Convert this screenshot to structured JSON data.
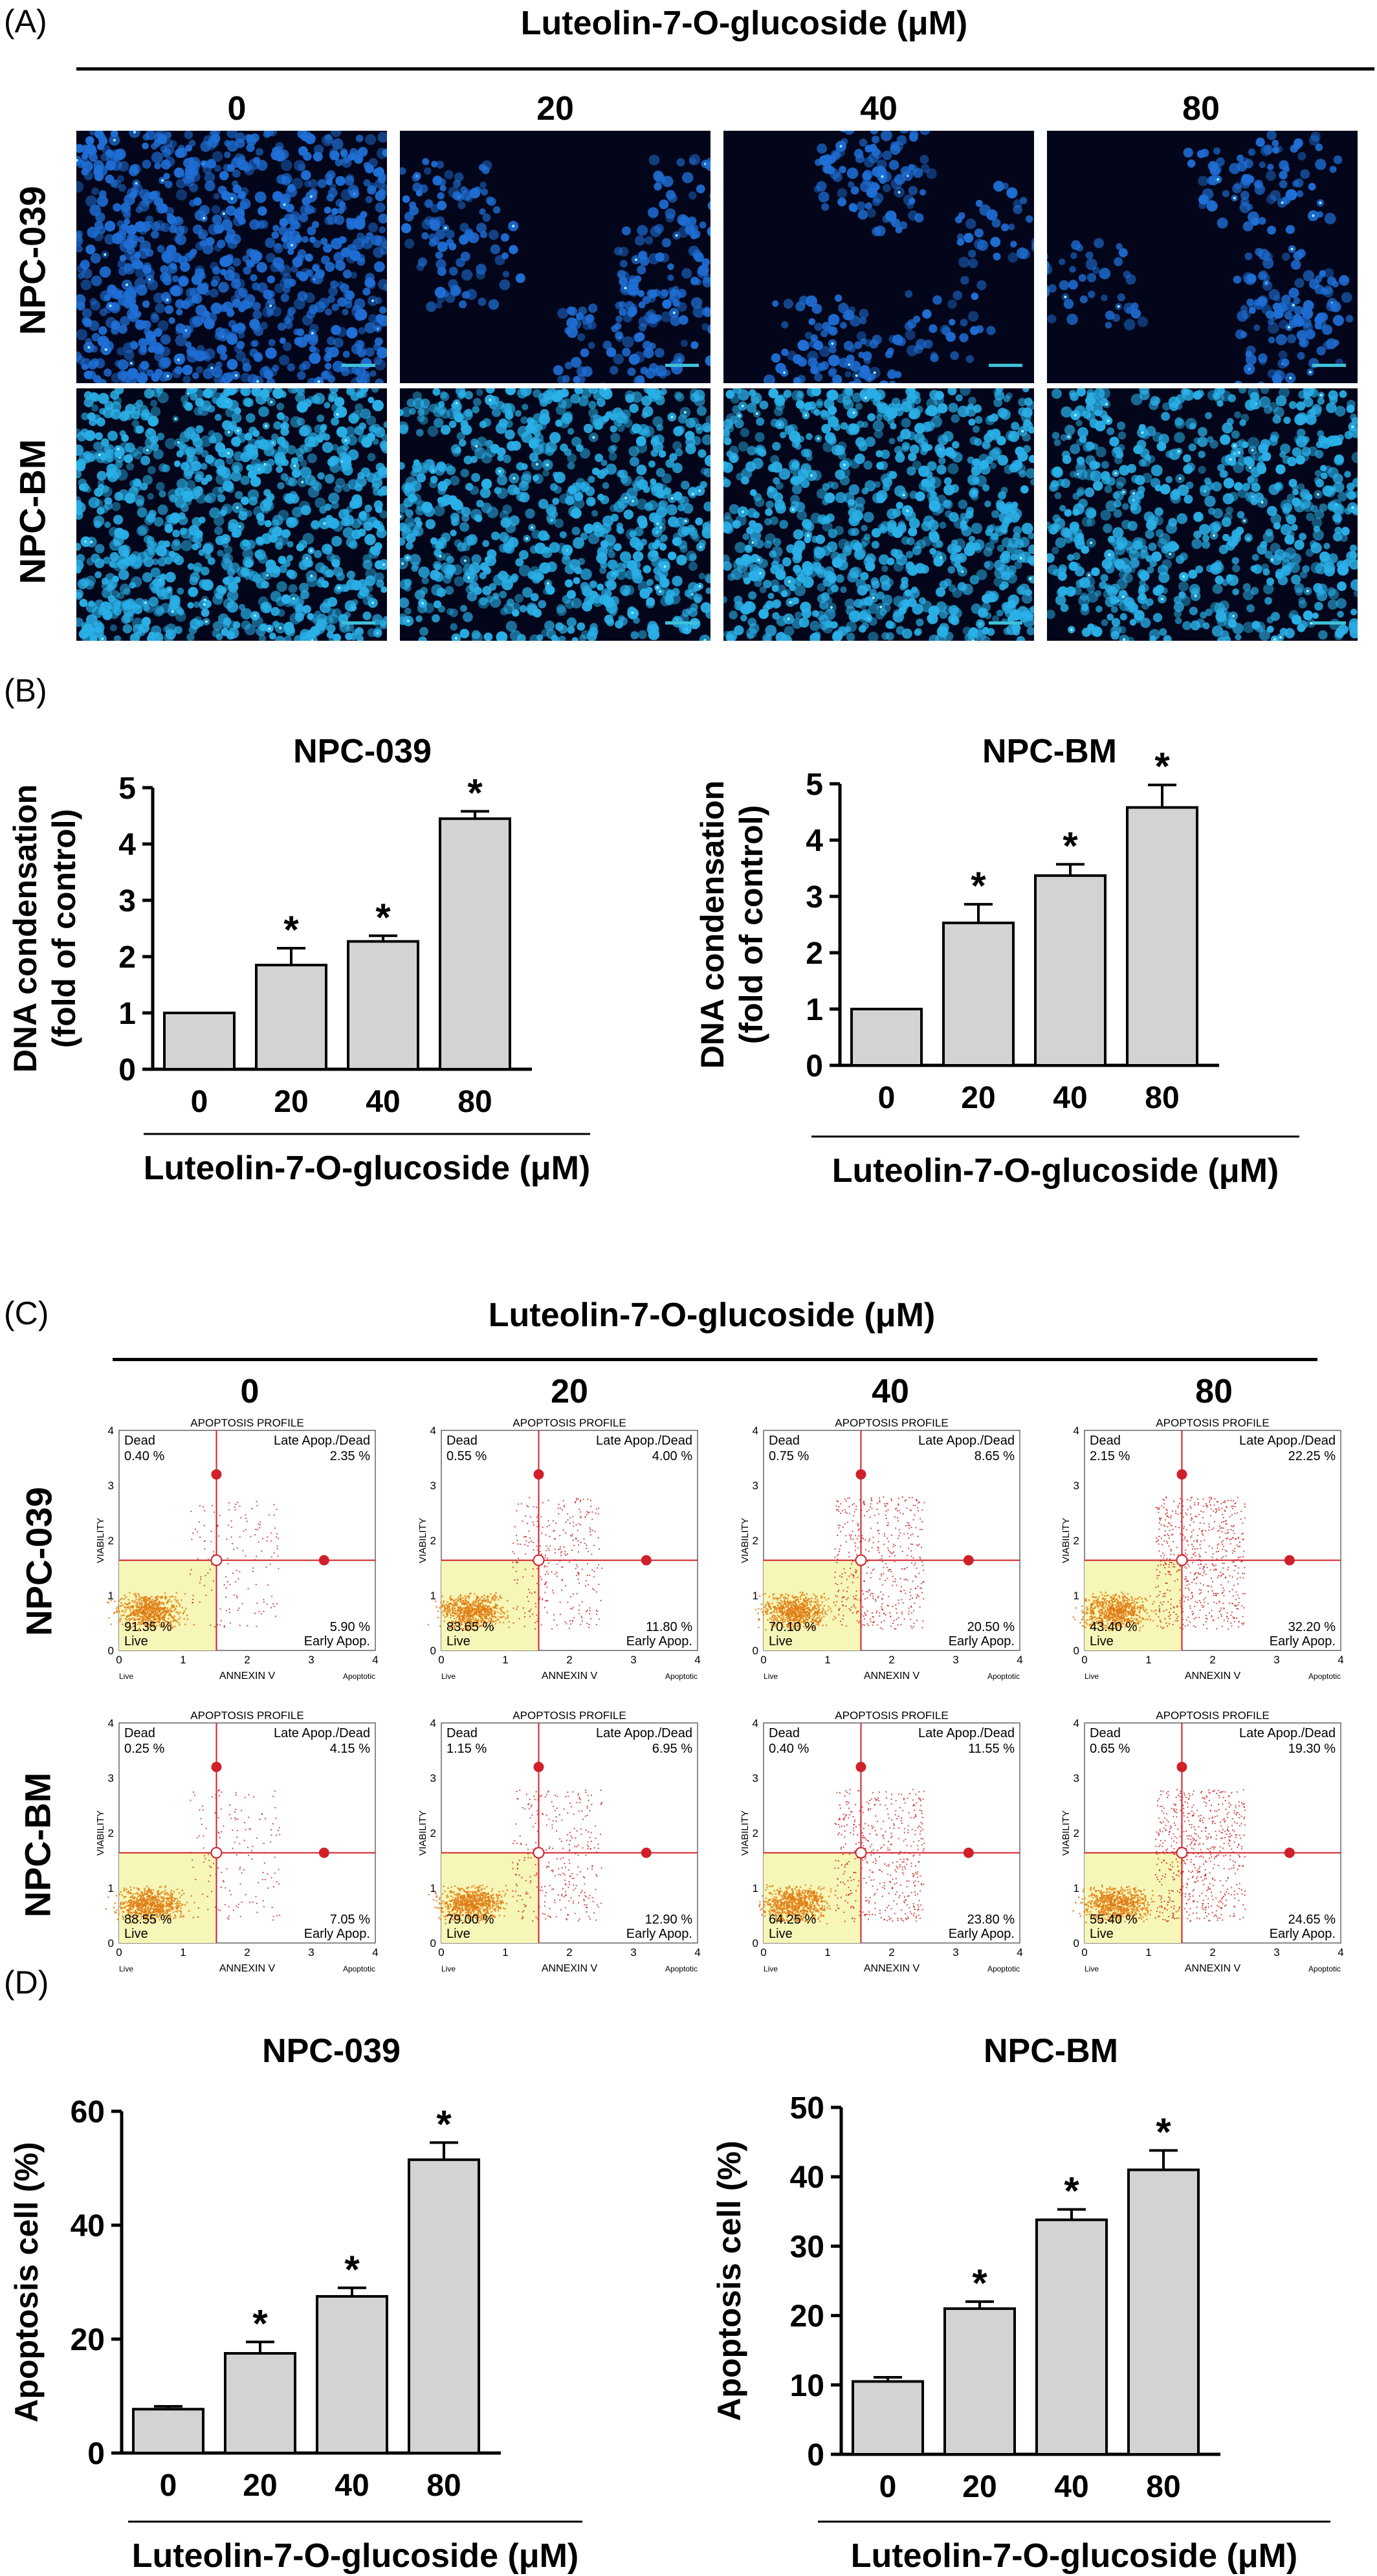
{
  "panels": {
    "A": "(A)",
    "B": "(B)",
    "C": "(C)",
    "D": "(D)"
  },
  "compound_header": "Luteolin-7-O-glucoside (μM)",
  "concentrations": [
    "0",
    "20",
    "40",
    "80"
  ],
  "cell_lines": [
    "NPC-039",
    "NPC-BM"
  ],
  "colors": {
    "bar_fill": "#d3d3d3",
    "micro_bg": "#03061a",
    "npc039_cell": "#1f6fd6",
    "npcbm_cell": "#2ab0e8",
    "scalebar": "#3fc0d8",
    "quad_line": "#d0202a",
    "live_zone": "#f6f6b8",
    "dot_live": "#e07a10",
    "dot_other": "#c01818"
  },
  "flow": {
    "profile_title": "APOPTOSIS PROFILE",
    "xlabel": "ANNEXIN V",
    "ylabel": "VIABILITY",
    "q_dead": "Dead",
    "q_late": "Late Apop./Dead",
    "q_live": "Live",
    "q_early": "Early Apop.",
    "x_left": "Live",
    "x_right": "Apoptotic",
    "ticks": [
      "0",
      "1",
      "2",
      "3",
      "4"
    ],
    "npc039": [
      {
        "dead": "0.40 %",
        "late": "2.35 %",
        "live": "91.35 %",
        "early": "5.90 %"
      },
      {
        "dead": "0.55 %",
        "late": "4.00 %",
        "live": "83.65 %",
        "early": "11.80 %"
      },
      {
        "dead": "0.75 %",
        "late": "8.65 %",
        "live": "70.10 %",
        "early": "20.50 %"
      },
      {
        "dead": "2.15 %",
        "late": "22.25 %",
        "live": "43.40 %",
        "early": "32.20 %"
      }
    ],
    "npcbm": [
      {
        "dead": "0.25 %",
        "late": "4.15 %",
        "live": "88.55 %",
        "early": "7.05 %"
      },
      {
        "dead": "1.15 %",
        "late": "6.95 %",
        "live": "79.00 %",
        "early": "12.90 %"
      },
      {
        "dead": "0.40 %",
        "late": "11.55 %",
        "live": "64.25 %",
        "early": "23.80 %"
      },
      {
        "dead": "0.65 %",
        "late": "19.30 %",
        "live": "55.40 %",
        "early": "24.65 %"
      }
    ]
  },
  "chart_data": [
    {
      "type": "bar",
      "title": "NPC-039",
      "xlabel": "Luteolin-7-O-glucoside (μM)",
      "ylabel": "DNA condensation (fold of control)",
      "categories": [
        "0",
        "20",
        "40",
        "80"
      ],
      "values": [
        1.0,
        1.85,
        2.27,
        4.45
      ],
      "errors": [
        0,
        0.3,
        0.1,
        0.13
      ],
      "significance": [
        "",
        "*",
        "*",
        "*"
      ],
      "ylim": [
        0,
        5
      ],
      "yticks": [
        "0",
        "1",
        "2",
        "3",
        "4",
        "5"
      ]
    },
    {
      "type": "bar",
      "title": "NPC-BM",
      "xlabel": "Luteolin-7-O-glucoside (μM)",
      "ylabel": "DNA condensation (fold of control)",
      "categories": [
        "0",
        "20",
        "40",
        "80"
      ],
      "values": [
        1.0,
        2.53,
        3.37,
        4.58
      ],
      "errors": [
        0,
        0.33,
        0.2,
        0.4
      ],
      "significance": [
        "",
        "*",
        "*",
        "*"
      ],
      "ylim": [
        0,
        5
      ],
      "yticks": [
        "0",
        "1",
        "2",
        "3",
        "4",
        "5"
      ]
    },
    {
      "type": "bar",
      "title": "NPC-039",
      "xlabel": "Luteolin-7-O-glucoside (μM)",
      "ylabel": "Apoptosis cell (%)",
      "categories": [
        "0",
        "20",
        "40",
        "80"
      ],
      "values": [
        7.7,
        17.5,
        27.5,
        51.5
      ],
      "errors": [
        0.5,
        2.0,
        1.5,
        3.0
      ],
      "significance": [
        "",
        "*",
        "*",
        "*"
      ],
      "ylim": [
        0,
        60
      ],
      "yticks": [
        "0",
        "20",
        "40",
        "60"
      ]
    },
    {
      "type": "bar",
      "title": "NPC-BM",
      "xlabel": "Luteolin-7-O-glucoside (μM)",
      "ylabel": "Apoptosis cell (%)",
      "categories": [
        "0",
        "20",
        "40",
        "80"
      ],
      "values": [
        10.5,
        21.0,
        33.8,
        41.0
      ],
      "errors": [
        0.6,
        1.0,
        1.5,
        2.8
      ],
      "significance": [
        "",
        "*",
        "*",
        "*"
      ],
      "ylim": [
        0,
        50
      ],
      "yticks": [
        "0",
        "10",
        "20",
        "30",
        "40",
        "50"
      ]
    }
  ]
}
